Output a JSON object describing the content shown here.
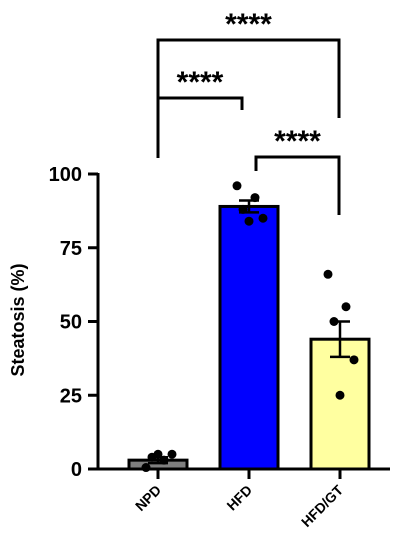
{
  "chart_data": {
    "type": "bar",
    "ylabel": "Steatosis (%)",
    "ylim": [
      0,
      100
    ],
    "yticks": [
      0,
      25,
      50,
      75,
      100
    ],
    "categories": [
      "NPD",
      "HFD",
      "HFD/GT"
    ],
    "values": [
      3,
      89,
      44
    ],
    "errors": [
      1,
      2,
      6
    ],
    "colors": [
      "#7f7f7f",
      "#0000ff",
      "#ffffa0"
    ],
    "points": [
      [
        0.5,
        3,
        4,
        5,
        5
      ],
      [
        96,
        92,
        88,
        85,
        84
      ],
      [
        66,
        55,
        50,
        37,
        25
      ]
    ],
    "significance": [
      {
        "from": 0,
        "to": 1,
        "label": "****"
      },
      {
        "from": 1,
        "to": 2,
        "label": "****"
      },
      {
        "from": 0,
        "to": 2,
        "label": "****"
      }
    ]
  }
}
